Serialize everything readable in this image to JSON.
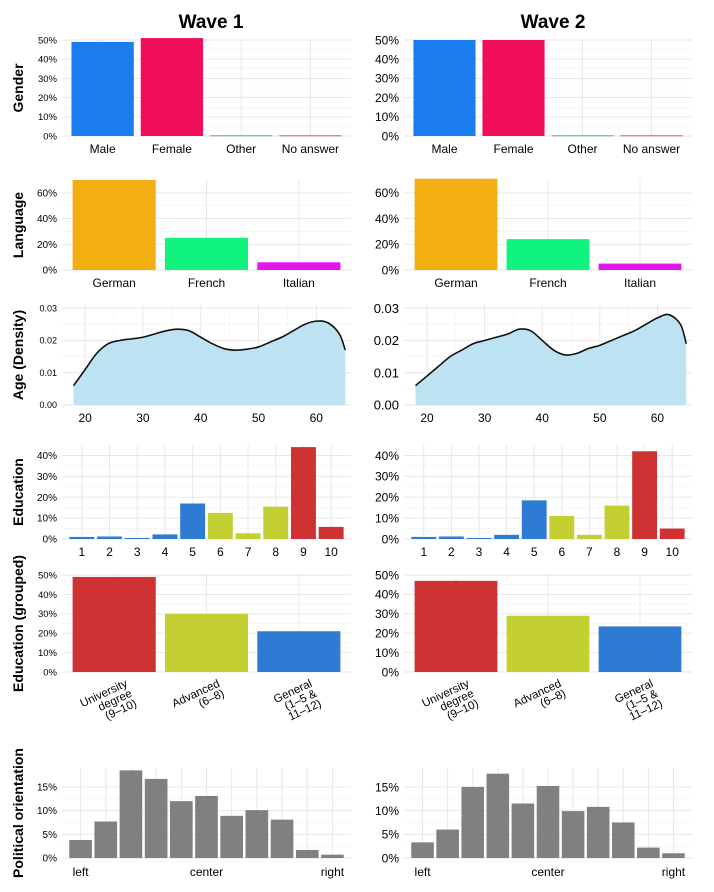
{
  "waves": [
    "Wave 1",
    "Wave 2"
  ],
  "chart_data": [
    {
      "id": "gender",
      "type": "bar",
      "row_label": "Gender",
      "categories": [
        "Male",
        "Female",
        "Other",
        "No answer"
      ],
      "colors": [
        "#1b7ced",
        "#f10e5c",
        "#2e9e3e",
        "#d62728"
      ],
      "ylim": [
        0,
        0.5
      ],
      "yticks": [
        0,
        0.1,
        0.2,
        0.3,
        0.4,
        0.5
      ],
      "ytick_labels": [
        "0%",
        "10%",
        "20%",
        "30%",
        "40%",
        "50%"
      ],
      "series": [
        {
          "name": "Wave 1",
          "values": [
            0.49,
            0.51,
            0.003,
            0.003
          ]
        },
        {
          "name": "Wave 2",
          "values": [
            0.5,
            0.5,
            0.003,
            0.003
          ]
        }
      ]
    },
    {
      "id": "language",
      "type": "bar",
      "row_label": "Language",
      "categories": [
        "German",
        "French",
        "Italian"
      ],
      "colors": [
        "#f3ae11",
        "#10f47d",
        "#e614ed"
      ],
      "ylim": [
        0,
        0.7
      ],
      "yticks": [
        0,
        0.2,
        0.4,
        0.6
      ],
      "ytick_labels": [
        "0%",
        "20%",
        "40%",
        "60%"
      ],
      "series": [
        {
          "name": "Wave 1",
          "values": [
            0.7,
            0.25,
            0.06
          ]
        },
        {
          "name": "Wave 2",
          "values": [
            0.71,
            0.24,
            0.05
          ]
        }
      ]
    },
    {
      "id": "age",
      "type": "area",
      "row_label": "Age (Density)",
      "x": [
        18,
        20,
        22,
        24,
        26,
        28,
        30,
        32,
        34,
        36,
        38,
        40,
        42,
        44,
        46,
        48,
        50,
        52,
        54,
        56,
        58,
        60,
        62,
        64,
        65
      ],
      "xticks": [
        20,
        30,
        40,
        50,
        60
      ],
      "xtick_labels": [
        "20",
        "30",
        "40",
        "50",
        "60"
      ],
      "ylim": [
        0,
        0.031
      ],
      "yticks": [
        0,
        0.01,
        0.02,
        0.03
      ],
      "ytick_labels": [
        "0.00",
        "0.01",
        "0.02",
        "0.03"
      ],
      "fill": "#bde2f2",
      "line_color": "#111111",
      "series": [
        {
          "name": "Wave 1",
          "values": [
            0.006,
            0.011,
            0.016,
            0.019,
            0.02,
            0.0205,
            0.021,
            0.022,
            0.023,
            0.0235,
            0.023,
            0.021,
            0.019,
            0.0175,
            0.017,
            0.0173,
            0.018,
            0.0195,
            0.021,
            0.023,
            0.025,
            0.026,
            0.0255,
            0.022,
            0.017
          ]
        },
        {
          "name": "Wave 2",
          "values": [
            0.006,
            0.009,
            0.012,
            0.015,
            0.017,
            0.019,
            0.02,
            0.021,
            0.022,
            0.0235,
            0.023,
            0.02,
            0.017,
            0.0155,
            0.016,
            0.0175,
            0.0185,
            0.02,
            0.0215,
            0.023,
            0.025,
            0.027,
            0.028,
            0.025,
            0.019
          ]
        }
      ]
    },
    {
      "id": "education",
      "type": "bar",
      "row_label": "Education",
      "categories": [
        "1",
        "2",
        "3",
        "4",
        "5",
        "6",
        "7",
        "8",
        "9",
        "10"
      ],
      "colors": [
        "#2e7bd3",
        "#2e7bd3",
        "#2e7bd3",
        "#2e7bd3",
        "#2e7bd3",
        "#c4cf32",
        "#c4cf32",
        "#c4cf32",
        "#ce3232",
        "#ce3232"
      ],
      "ylim": [
        0,
        0.45
      ],
      "yticks": [
        0,
        0.1,
        0.2,
        0.3,
        0.4
      ],
      "ytick_labels": [
        "0%",
        "10%",
        "20%",
        "30%",
        "40%"
      ],
      "series": [
        {
          "name": "Wave 1",
          "values": [
            0.01,
            0.012,
            0.005,
            0.022,
            0.17,
            0.125,
            0.027,
            0.155,
            0.44,
            0.058
          ]
        },
        {
          "name": "Wave 2",
          "values": [
            0.01,
            0.012,
            0.005,
            0.02,
            0.185,
            0.11,
            0.02,
            0.16,
            0.42,
            0.05
          ]
        }
      ]
    },
    {
      "id": "education_grouped",
      "type": "bar",
      "row_label": "Education (grouped)",
      "categories": [
        "University degree (9–10)",
        "Advanced (6–8)",
        "General (1–5 & 11–12)"
      ],
      "category_label_lines": [
        [
          "University",
          "degree",
          "(9–10)"
        ],
        [
          "Advanced",
          "(6–8)"
        ],
        [
          "General",
          "(1–5 &",
          "11–12)"
        ]
      ],
      "colors": [
        "#ce3232",
        "#c4cf32",
        "#2e7bd3"
      ],
      "ylim": [
        0,
        0.5
      ],
      "yticks": [
        0,
        0.1,
        0.2,
        0.3,
        0.4,
        0.5
      ],
      "ytick_labels": [
        "0%",
        "10%",
        "20%",
        "30%",
        "40%",
        "50%"
      ],
      "series": [
        {
          "name": "Wave 1",
          "values": [
            0.49,
            0.3,
            0.21
          ]
        },
        {
          "name": "Wave 2",
          "values": [
            0.47,
            0.29,
            0.235
          ]
        }
      ]
    },
    {
      "id": "political",
      "type": "bar",
      "row_label": "Political orientation",
      "categories": [
        "0",
        "1",
        "2",
        "3",
        "4",
        "5",
        "6",
        "7",
        "8",
        "9",
        "10"
      ],
      "xtick_labels": [
        {
          "index": 0,
          "label": "left"
        },
        {
          "index": 5,
          "label": "center"
        },
        {
          "index": 10,
          "label": "right"
        }
      ],
      "colors": [
        "#808080"
      ],
      "ylim": [
        0,
        0.19
      ],
      "yticks": [
        0,
        0.05,
        0.1,
        0.15
      ],
      "ytick_labels": [
        "0%",
        "5%",
        "10%",
        "15%"
      ],
      "series": [
        {
          "name": "Wave 1",
          "values": [
            0.038,
            0.077,
            0.185,
            0.167,
            0.12,
            0.131,
            0.089,
            0.101,
            0.081,
            0.017,
            0.007
          ]
        },
        {
          "name": "Wave 2",
          "values": [
            0.033,
            0.06,
            0.15,
            0.178,
            0.115,
            0.152,
            0.099,
            0.108,
            0.075,
            0.022,
            0.01
          ]
        }
      ]
    }
  ]
}
